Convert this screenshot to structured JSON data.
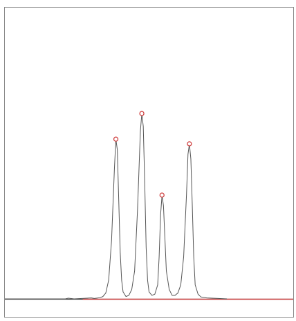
{
  "chart_data": {
    "type": "line",
    "title": "",
    "xlabel": "",
    "ylabel": "",
    "xlim": [
      0,
      100
    ],
    "ylim": [
      0,
      100
    ],
    "grid": false,
    "legend": "none",
    "series": [
      {
        "color": "#555555",
        "x": [
          0,
          21,
          22,
          24,
          30,
          31,
          33,
          34,
          35,
          36,
          37,
          38,
          38.5,
          39,
          39.5,
          40,
          40.5,
          41,
          42,
          43,
          44,
          45,
          46,
          47,
          47.5,
          48,
          48.5,
          49,
          49.5,
          50,
          51,
          52,
          53,
          53.5,
          54,
          54.5,
          55,
          55.5,
          56,
          57,
          58,
          59,
          60,
          61,
          62,
          63,
          63.5,
          64,
          64.5,
          65,
          65.5,
          66,
          67,
          68,
          70,
          74,
          77
        ],
        "y": [
          0,
          0,
          0.3,
          0,
          0.4,
          0.2,
          0.5,
          1,
          2.5,
          8,
          25,
          56,
          68.5,
          64,
          42,
          20,
          8,
          3,
          1,
          1.5,
          4,
          12,
          38,
          72,
          79.5,
          74,
          50,
          22,
          8,
          3,
          1.5,
          2,
          6,
          18,
          36,
          44.5,
          40,
          26,
          12,
          4,
          1.5,
          1.5,
          2.5,
          6,
          18,
          45,
          62,
          66.5,
          60,
          40,
          18,
          6,
          2,
          0.8,
          0.4,
          0.2,
          0
        ]
      }
    ],
    "baseline": {
      "color": "#d04040",
      "x": [
        27,
        100
      ],
      "y": [
        0,
        0
      ]
    },
    "peaks": {
      "color": "#d04040",
      "x": [
        38.5,
        47.5,
        54.5,
        64
      ],
      "y": [
        68.5,
        79.5,
        44.5,
        66.5
      ]
    }
  }
}
